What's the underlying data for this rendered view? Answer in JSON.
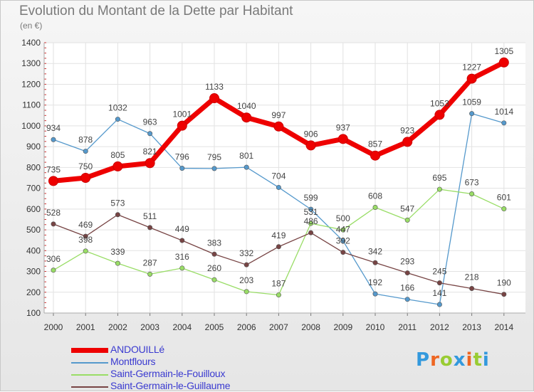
{
  "header": {
    "title": "Evolution du Montant de la Dette par Habitant",
    "unit": "(en €)"
  },
  "logo": {
    "text": "Proxiti",
    "colors": [
      "#3399dd",
      "#ee6622",
      "#99cc33",
      "#3399dd",
      "#ee6622",
      "#99cc33",
      "#3399dd"
    ]
  },
  "chart_data": {
    "type": "line",
    "title": "Evolution du Montant de la Dette par Habitant",
    "ylabel": "(en €)",
    "xlabel": "",
    "x": [
      "2000",
      "2001",
      "2002",
      "2003",
      "2004",
      "2005",
      "2006",
      "2007",
      "2008",
      "2009",
      "2010",
      "2011",
      "2012",
      "2013",
      "2014"
    ],
    "ylim": [
      100,
      1400
    ],
    "yticks": [
      "100",
      "200",
      "300",
      "400",
      "500",
      "600",
      "700",
      "800",
      "900",
      "1000",
      "1100",
      "1200",
      "1300",
      "1400"
    ],
    "grid": true,
    "legend": "bottom-left",
    "series": [
      {
        "name": "ANDOUILLé",
        "color": "#ee0000",
        "emphasis": true,
        "values": [
          735,
          750,
          805,
          821,
          1001,
          1133,
          1040,
          997,
          906,
          937,
          857,
          923,
          1053,
          1227,
          1305
        ]
      },
      {
        "name": "Montflours",
        "color": "#5599cc",
        "values": [
          934,
          878,
          1032,
          963,
          796,
          795,
          801,
          704,
          599,
          447,
          192,
          166,
          141,
          1059,
          1014
        ]
      },
      {
        "name": "Saint-Germain-le-Fouilloux",
        "color": "#99dd66",
        "values": [
          306,
          398,
          339,
          287,
          316,
          260,
          203,
          187,
          531,
          500,
          608,
          547,
          695,
          673,
          601
        ]
      },
      {
        "name": "Saint-Germain-le-Guillaume",
        "color": "#774444",
        "values": [
          528,
          469,
          573,
          511,
          449,
          383,
          332,
          419,
          486,
          392,
          342,
          293,
          245,
          218,
          190
        ]
      }
    ]
  }
}
